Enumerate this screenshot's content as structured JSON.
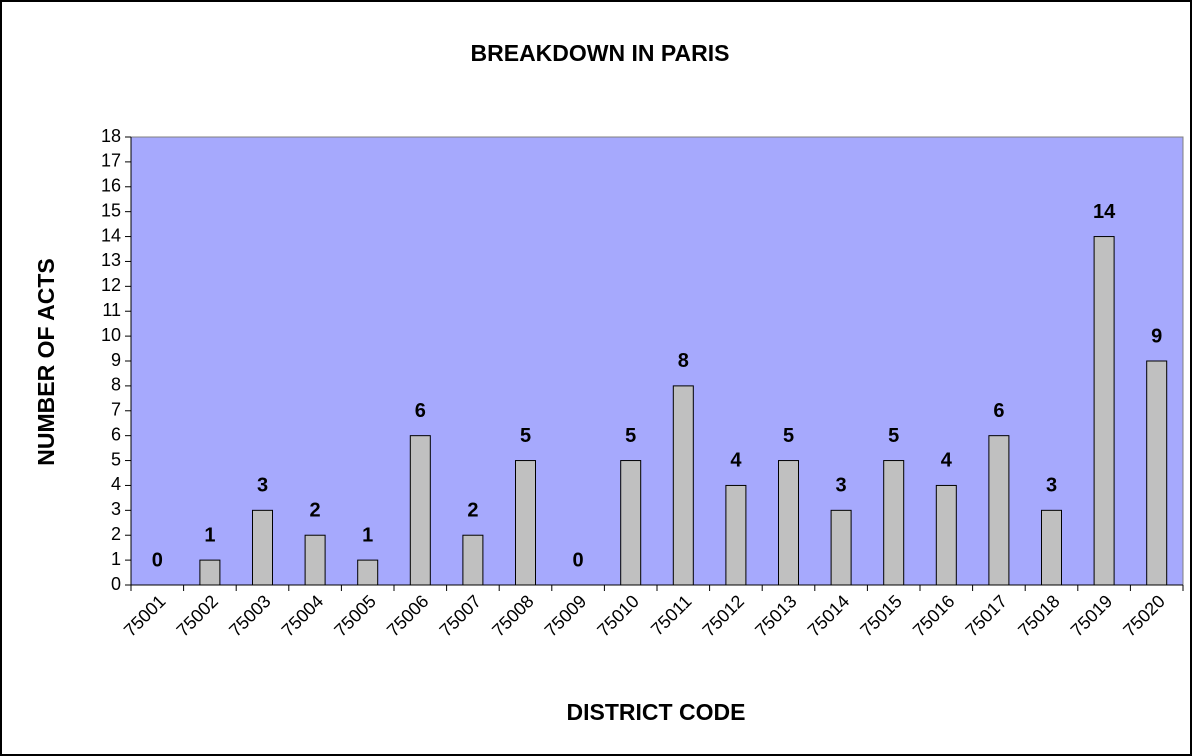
{
  "chart_data": {
    "type": "bar",
    "title": "BREAKDOWN IN PARIS",
    "x_label": "DISTRICT CODE",
    "y_label": "NUMBER OF ACTS",
    "categories": [
      "75001",
      "75002",
      "75003",
      "75004",
      "75005",
      "75006",
      "75007",
      "75008",
      "75009",
      "75010",
      "75011",
      "75012",
      "75013",
      "75014",
      "75015",
      "75016",
      "75017",
      "75018",
      "75019",
      "75020"
    ],
    "values": [
      0,
      1,
      3,
      2,
      1,
      6,
      2,
      5,
      0,
      5,
      8,
      4,
      5,
      3,
      5,
      4,
      6,
      3,
      14,
      9
    ],
    "color": "#c0c0c0",
    "background": "#a6a9fd",
    "ylim": [
      0,
      18
    ],
    "yticks": [
      0,
      1,
      2,
      3,
      4,
      5,
      6,
      7,
      8,
      9,
      10,
      11,
      12,
      13,
      14,
      15,
      16,
      17,
      18
    ],
    "grid": false
  }
}
